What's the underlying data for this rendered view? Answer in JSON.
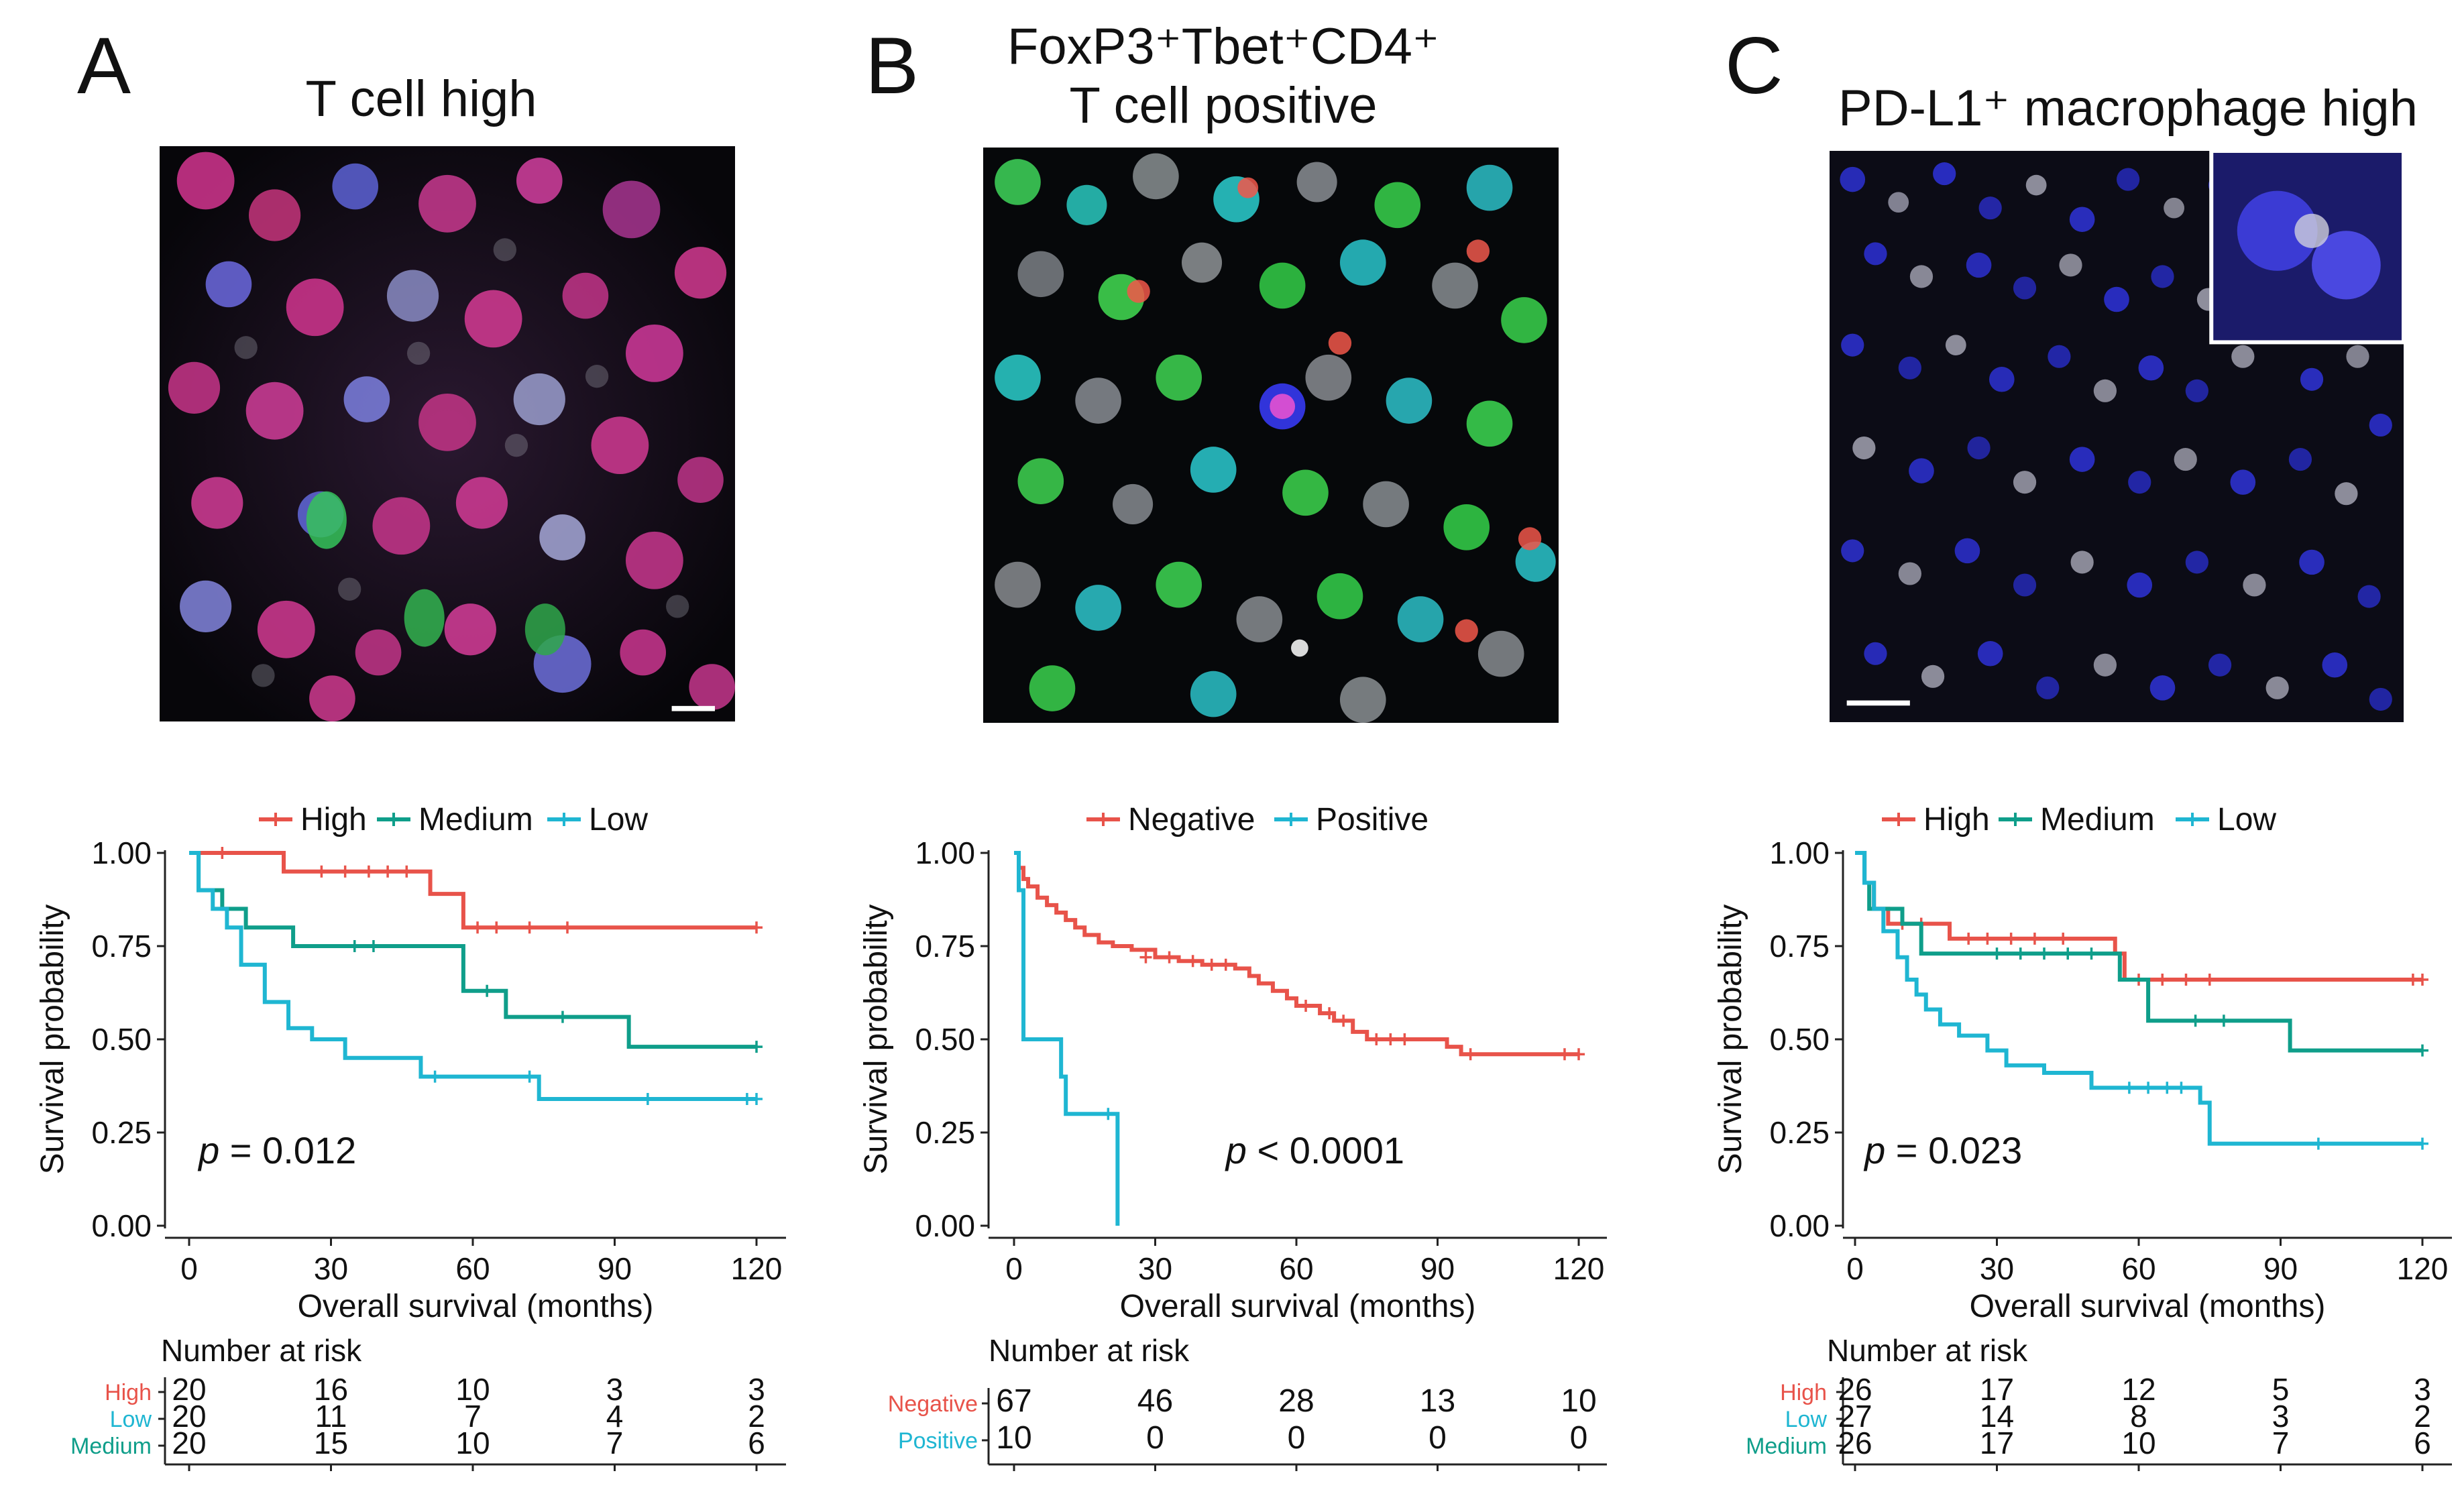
{
  "panels": [
    {
      "letter": "A",
      "image_title": "T cell high",
      "legend": [
        "High",
        "Medium",
        "Low"
      ]
    },
    {
      "letter": "B",
      "image_title_line1": "FoxP3⁺Tbet⁺CD4⁺",
      "image_title_line2": "T cell positive",
      "legend": [
        "Negative",
        "Positive"
      ]
    },
    {
      "letter": "C",
      "image_title": "PD-L1⁺ macrophage high",
      "legend": [
        "High",
        "Medium",
        "Low"
      ]
    }
  ],
  "colors": {
    "high": "#e8534a",
    "medium": "#0f9e8a",
    "low": "#1fb6d2",
    "negative": "#e8534a",
    "positive": "#1fb6d2"
  },
  "chart_data": [
    {
      "type": "line",
      "subtype": "kaplan-meier",
      "title": "",
      "xlabel": "Overall survival (months)",
      "ylabel": "Survival probability",
      "xlim": [
        0,
        120
      ],
      "ylim": [
        0,
        1
      ],
      "xticks": [
        0,
        30,
        60,
        90,
        120
      ],
      "yticks": [
        0.0,
        0.25,
        0.5,
        0.75,
        1.0
      ],
      "ytick_labels": [
        "0.00",
        "0.25",
        "0.50",
        "0.75",
        "1.00"
      ],
      "pvalue_label": "p",
      "pvalue_text": " = 0.012",
      "series": [
        {
          "name": "High",
          "color": "#e8534a",
          "steps": [
            [
              0,
              1.0
            ],
            [
              20,
              0.95
            ],
            [
              51,
              0.89
            ],
            [
              58,
              0.8
            ],
            [
              120,
              0.8
            ]
          ],
          "censors": [
            [
              7,
              1.0
            ],
            [
              28,
              0.95
            ],
            [
              33,
              0.95
            ],
            [
              38,
              0.95
            ],
            [
              42,
              0.95
            ],
            [
              46,
              0.95
            ],
            [
              61,
              0.8
            ],
            [
              65,
              0.8
            ],
            [
              72,
              0.8
            ],
            [
              80,
              0.8
            ],
            [
              120,
              0.8
            ]
          ]
        },
        {
          "name": "Medium",
          "color": "#0f9e8a",
          "steps": [
            [
              0,
              1.0
            ],
            [
              2,
              0.9
            ],
            [
              7,
              0.85
            ],
            [
              12,
              0.8
            ],
            [
              22,
              0.75
            ],
            [
              58,
              0.63
            ],
            [
              67,
              0.56
            ],
            [
              93,
              0.48
            ],
            [
              120,
              0.48
            ]
          ],
          "censors": [
            [
              35,
              0.75
            ],
            [
              39,
              0.75
            ],
            [
              63,
              0.63
            ],
            [
              79,
              0.56
            ],
            [
              120,
              0.48
            ]
          ],
          "end": [
            120,
            0.48
          ]
        },
        {
          "name": "Low",
          "color": "#1fb6d2",
          "steps": [
            [
              0,
              1.0
            ],
            [
              2,
              0.9
            ],
            [
              5,
              0.85
            ],
            [
              8,
              0.8
            ],
            [
              11,
              0.7
            ],
            [
              16,
              0.6
            ],
            [
              21,
              0.53
            ],
            [
              26,
              0.5
            ],
            [
              33,
              0.45
            ],
            [
              49,
              0.4
            ],
            [
              74,
              0.34
            ],
            [
              120,
              0.34
            ]
          ],
          "censors": [
            [
              52,
              0.4
            ],
            [
              72,
              0.4
            ],
            [
              97,
              0.34
            ],
            [
              118,
              0.34
            ],
            [
              120,
              0.34
            ]
          ]
        }
      ],
      "risk_table": {
        "title": "Number at risk",
        "rows": [
          {
            "label": "High",
            "color": "#e8534a",
            "values": [
              20,
              16,
              10,
              3,
              3
            ]
          },
          {
            "label": "Low",
            "color": "#1fb6d2",
            "values": [
              20,
              11,
              7,
              4,
              2
            ]
          },
          {
            "label": "Medium",
            "color": "#0f9e8a",
            "values": [
              20,
              15,
              10,
              7,
              6
            ]
          }
        ]
      }
    },
    {
      "type": "line",
      "subtype": "kaplan-meier",
      "title": "",
      "xlabel": "Overall survival (months)",
      "ylabel": "Survival probability",
      "xlim": [
        0,
        120
      ],
      "ylim": [
        0,
        1
      ],
      "xticks": [
        0,
        30,
        60,
        90,
        120
      ],
      "yticks": [
        0.0,
        0.25,
        0.5,
        0.75,
        1.0
      ],
      "ytick_labels": [
        "0.00",
        "0.25",
        "0.50",
        "0.75",
        "1.00"
      ],
      "pvalue_label": "p",
      "pvalue_text": " < 0.0001",
      "series": [
        {
          "name": "Negative",
          "color": "#e8534a",
          "steps": [
            [
              0,
              1.0
            ],
            [
              1,
              0.96
            ],
            [
              2,
              0.93
            ],
            [
              3,
              0.91
            ],
            [
              5,
              0.88
            ],
            [
              7,
              0.86
            ],
            [
              9,
              0.84
            ],
            [
              11,
              0.82
            ],
            [
              13,
              0.8
            ],
            [
              15,
              0.78
            ],
            [
              18,
              0.76
            ],
            [
              21,
              0.75
            ],
            [
              25,
              0.74
            ],
            [
              30,
              0.72
            ],
            [
              35,
              0.71
            ],
            [
              40,
              0.7
            ],
            [
              47,
              0.69
            ],
            [
              50,
              0.67
            ],
            [
              52,
              0.65
            ],
            [
              55,
              0.63
            ],
            [
              58,
              0.61
            ],
            [
              60,
              0.59
            ],
            [
              65,
              0.57
            ],
            [
              68,
              0.55
            ],
            [
              72,
              0.52
            ],
            [
              75,
              0.5
            ],
            [
              92,
              0.48
            ],
            [
              95,
              0.46
            ],
            [
              120,
              0.46
            ]
          ],
          "censors": [
            [
              28,
              0.72
            ],
            [
              33,
              0.72
            ],
            [
              38,
              0.71
            ],
            [
              42,
              0.7
            ],
            [
              45,
              0.7
            ],
            [
              62,
              0.59
            ],
            [
              67,
              0.57
            ],
            [
              70,
              0.55
            ],
            [
              77,
              0.5
            ],
            [
              80,
              0.5
            ],
            [
              83,
              0.5
            ],
            [
              97,
              0.46
            ],
            [
              117,
              0.46
            ],
            [
              120,
              0.46
            ]
          ]
        },
        {
          "name": "Positive",
          "color": "#1fb6d2",
          "steps": [
            [
              0,
              1.0
            ],
            [
              1,
              0.9
            ],
            [
              2,
              0.5
            ],
            [
              10,
              0.4
            ],
            [
              11,
              0.3
            ],
            [
              22,
              0.3
            ],
            [
              22,
              0.0
            ]
          ],
          "censors": [
            [
              20,
              0.3
            ]
          ]
        }
      ],
      "risk_table": {
        "title": "Number at risk",
        "rows": [
          {
            "label": "Negative",
            "color": "#e8534a",
            "values": [
              67,
              46,
              28,
              13,
              10
            ]
          },
          {
            "label": "Positive",
            "color": "#1fb6d2",
            "values": [
              10,
              0,
              0,
              0,
              0
            ]
          }
        ]
      }
    },
    {
      "type": "line",
      "subtype": "kaplan-meier",
      "title": "",
      "xlabel": "Overall survival (months)",
      "ylabel": "Survival probability",
      "xlim": [
        0,
        120
      ],
      "ylim": [
        0,
        1
      ],
      "xticks": [
        0,
        30,
        60,
        90,
        120
      ],
      "yticks": [
        0.0,
        0.25,
        0.5,
        0.75,
        1.0
      ],
      "ytick_labels": [
        "0.00",
        "0.25",
        "0.50",
        "0.75",
        "1.00"
      ],
      "pvalue_label": "p",
      "pvalue_text": " = 0.023",
      "series": [
        {
          "name": "High",
          "color": "#e8534a",
          "steps": [
            [
              0,
              1.0
            ],
            [
              2,
              0.92
            ],
            [
              4,
              0.85
            ],
            [
              7,
              0.81
            ],
            [
              20,
              0.77
            ],
            [
              55,
              0.73
            ],
            [
              57,
              0.66
            ],
            [
              120,
              0.66
            ]
          ],
          "censors": [
            [
              10,
              0.81
            ],
            [
              14,
              0.81
            ],
            [
              24,
              0.77
            ],
            [
              28,
              0.77
            ],
            [
              33,
              0.77
            ],
            [
              38,
              0.77
            ],
            [
              44,
              0.77
            ],
            [
              60,
              0.66
            ],
            [
              65,
              0.66
            ],
            [
              70,
              0.66
            ],
            [
              75,
              0.66
            ],
            [
              118,
              0.66
            ],
            [
              120,
              0.66
            ]
          ]
        },
        {
          "name": "Medium",
          "color": "#0f9e8a",
          "steps": [
            [
              0,
              1.0
            ],
            [
              2,
              0.92
            ],
            [
              3,
              0.85
            ],
            [
              10,
              0.81
            ],
            [
              14,
              0.73
            ],
            [
              56,
              0.66
            ],
            [
              62,
              0.55
            ],
            [
              92,
              0.47
            ],
            [
              120,
              0.47
            ]
          ],
          "censors": [
            [
              30,
              0.73
            ],
            [
              35,
              0.73
            ],
            [
              40,
              0.73
            ],
            [
              45,
              0.73
            ],
            [
              50,
              0.73
            ],
            [
              72,
              0.55
            ],
            [
              78,
              0.55
            ],
            [
              120,
              0.47
            ]
          ]
        },
        {
          "name": "Low",
          "color": "#1fb6d2",
          "steps": [
            [
              0,
              1.0
            ],
            [
              2,
              0.92
            ],
            [
              4,
              0.85
            ],
            [
              6,
              0.79
            ],
            [
              9,
              0.72
            ],
            [
              11,
              0.66
            ],
            [
              13,
              0.62
            ],
            [
              15,
              0.58
            ],
            [
              18,
              0.54
            ],
            [
              22,
              0.51
            ],
            [
              28,
              0.47
            ],
            [
              32,
              0.43
            ],
            [
              40,
              0.41
            ],
            [
              50,
              0.37
            ],
            [
              73,
              0.33
            ],
            [
              75,
              0.22
            ],
            [
              120,
              0.22
            ]
          ],
          "censors": [
            [
              58,
              0.37
            ],
            [
              62,
              0.37
            ],
            [
              66,
              0.37
            ],
            [
              69,
              0.37
            ],
            [
              98,
              0.22
            ],
            [
              120,
              0.22
            ]
          ]
        }
      ],
      "risk_table": {
        "title": "Number at risk",
        "rows": [
          {
            "label": "High",
            "color": "#e8534a",
            "values": [
              26,
              17,
              12,
              5,
              3
            ]
          },
          {
            "label": "Low",
            "color": "#1fb6d2",
            "values": [
              27,
              14,
              8,
              3,
              2
            ]
          },
          {
            "label": "Medium",
            "color": "#0f9e8a",
            "values": [
              26,
              17,
              10,
              7,
              6
            ]
          }
        ]
      }
    }
  ]
}
